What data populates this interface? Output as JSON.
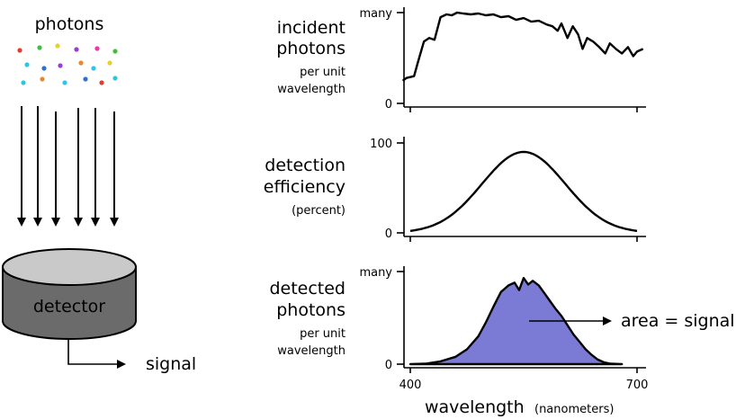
{
  "left_diagram": {
    "photons_label": "photons",
    "detector_label": "detector",
    "signal_label": "signal",
    "photon_colors": [
      "#e63b2e",
      "#2d6fd6",
      "#3fbf3f",
      "#e6d02e",
      "#9b3bd6",
      "#2ec4e6",
      "#e63ba8",
      "#e6892e"
    ]
  },
  "panels": {
    "incident": {
      "title_lines": [
        "incident",
        "photons"
      ],
      "sub_lines": [
        "per unit",
        "wavelength"
      ],
      "y_max_label": "many",
      "y_zero_label": "0"
    },
    "efficiency": {
      "title_lines": [
        "detection",
        "efficiency"
      ],
      "sub_lines": [
        "(percent)"
      ],
      "y_max_label": "100",
      "y_zero_label": "0"
    },
    "detected": {
      "title_lines": [
        "detected",
        "photons"
      ],
      "sub_lines": [
        "per unit",
        "wavelength"
      ],
      "y_max_label": "many",
      "y_zero_label": "0",
      "annotation": "area = signal"
    }
  },
  "x_axis": {
    "tick_labels": [
      "400",
      "700"
    ],
    "label": "wavelength",
    "unit": "(nanometers)"
  },
  "chart_data": {
    "type": "line",
    "xlim": [
      390,
      710
    ],
    "x_ticks": [
      400,
      700
    ],
    "incident": [
      [
        390,
        0.25
      ],
      [
        395,
        0.28
      ],
      [
        405,
        0.3
      ],
      [
        410,
        0.45
      ],
      [
        418,
        0.68
      ],
      [
        425,
        0.72
      ],
      [
        432,
        0.7
      ],
      [
        440,
        0.95
      ],
      [
        448,
        0.98
      ],
      [
        455,
        0.97
      ],
      [
        462,
        1.0
      ],
      [
        470,
        0.99
      ],
      [
        480,
        0.98
      ],
      [
        490,
        0.99
      ],
      [
        500,
        0.97
      ],
      [
        510,
        0.98
      ],
      [
        520,
        0.95
      ],
      [
        530,
        0.96
      ],
      [
        540,
        0.92
      ],
      [
        550,
        0.94
      ],
      [
        560,
        0.9
      ],
      [
        570,
        0.91
      ],
      [
        580,
        0.87
      ],
      [
        588,
        0.85
      ],
      [
        595,
        0.8
      ],
      [
        600,
        0.88
      ],
      [
        608,
        0.72
      ],
      [
        615,
        0.85
      ],
      [
        622,
        0.76
      ],
      [
        628,
        0.6
      ],
      [
        634,
        0.72
      ],
      [
        642,
        0.68
      ],
      [
        650,
        0.62
      ],
      [
        658,
        0.55
      ],
      [
        664,
        0.66
      ],
      [
        672,
        0.6
      ],
      [
        680,
        0.55
      ],
      [
        688,
        0.62
      ],
      [
        695,
        0.52
      ],
      [
        700,
        0.57
      ],
      [
        708,
        0.6
      ]
    ],
    "efficiency": {
      "center": 550,
      "sigma": 55,
      "peak_percent": 90,
      "ylim": [
        0,
        100
      ]
    },
    "detected": [
      [
        400,
        0
      ],
      [
        420,
        0.005
      ],
      [
        440,
        0.03
      ],
      [
        460,
        0.08
      ],
      [
        475,
        0.16
      ],
      [
        490,
        0.3
      ],
      [
        500,
        0.45
      ],
      [
        510,
        0.62
      ],
      [
        520,
        0.78
      ],
      [
        530,
        0.85
      ],
      [
        538,
        0.88
      ],
      [
        544,
        0.8
      ],
      [
        550,
        0.93
      ],
      [
        556,
        0.86
      ],
      [
        562,
        0.9
      ],
      [
        570,
        0.85
      ],
      [
        578,
        0.76
      ],
      [
        585,
        0.68
      ],
      [
        592,
        0.6
      ],
      [
        600,
        0.52
      ],
      [
        608,
        0.42
      ],
      [
        616,
        0.32
      ],
      [
        624,
        0.24
      ],
      [
        632,
        0.16
      ],
      [
        640,
        0.1
      ],
      [
        648,
        0.05
      ],
      [
        656,
        0.02
      ],
      [
        665,
        0.005
      ],
      [
        680,
        0
      ]
    ]
  }
}
